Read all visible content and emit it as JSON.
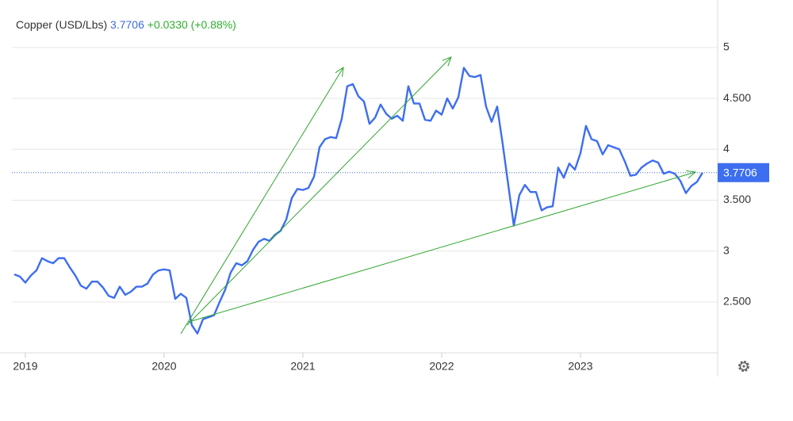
{
  "chart_data": {
    "type": "line",
    "title": "Copper (USD/Lbs)",
    "last": 3.7706,
    "change": "+0.0330 (+0.88%)",
    "x": [
      2018.92,
      2018.96,
      2019,
      2019.04,
      2019.08,
      2019.12,
      2019.16,
      2019.2,
      2019.24,
      2019.28,
      2019.32,
      2019.36,
      2019.4,
      2019.44,
      2019.48,
      2019.52,
      2019.56,
      2019.6,
      2019.64,
      2019.68,
      2019.72,
      2019.76,
      2019.8,
      2019.84,
      2019.88,
      2019.92,
      2019.96,
      2020,
      2020.04,
      2020.08,
      2020.12,
      2020.16,
      2020.2,
      2020.24,
      2020.28,
      2020.32,
      2020.36,
      2020.4,
      2020.44,
      2020.48,
      2020.52,
      2020.56,
      2020.6,
      2020.64,
      2020.68,
      2020.72,
      2020.76,
      2020.8,
      2020.84,
      2020.88,
      2020.92,
      2020.96,
      2021,
      2021.04,
      2021.08,
      2021.12,
      2021.16,
      2021.2,
      2021.24,
      2021.28,
      2021.32,
      2021.36,
      2021.4,
      2021.44,
      2021.48,
      2021.52,
      2021.56,
      2021.6,
      2021.64,
      2021.68,
      2021.72,
      2021.76,
      2021.8,
      2021.84,
      2021.88,
      2021.92,
      2021.96,
      2022,
      2022.04,
      2022.08,
      2022.12,
      2022.16,
      2022.2,
      2022.24,
      2022.28,
      2022.32,
      2022.36,
      2022.4,
      2022.44,
      2022.48,
      2022.52,
      2022.56,
      2022.6,
      2022.64,
      2022.68,
      2022.72,
      2022.76,
      2022.8,
      2022.84,
      2022.88,
      2022.92,
      2022.96,
      2023,
      2023.04,
      2023.08,
      2023.12,
      2023.16,
      2023.2,
      2023.24,
      2023.28,
      2023.32,
      2023.36,
      2023.4,
      2023.44,
      2023.48,
      2023.52,
      2023.56,
      2023.6,
      2023.64,
      2023.68,
      2023.72,
      2023.76,
      2023.8,
      2023.84,
      2023.88
    ],
    "series": [
      {
        "name": "Copper",
        "color": "#3d6ef0",
        "values": [
          2.77,
          2.75,
          2.69,
          2.76,
          2.81,
          2.93,
          2.9,
          2.88,
          2.93,
          2.93,
          2.84,
          2.76,
          2.66,
          2.63,
          2.7,
          2.7,
          2.64,
          2.56,
          2.54,
          2.65,
          2.57,
          2.6,
          2.65,
          2.65,
          2.68,
          2.77,
          2.81,
          2.82,
          2.81,
          2.53,
          2.58,
          2.54,
          2.27,
          2.19,
          2.33,
          2.35,
          2.37,
          2.5,
          2.62,
          2.79,
          2.88,
          2.86,
          2.9,
          3.01,
          3.09,
          3.12,
          3.1,
          3.16,
          3.2,
          3.31,
          3.52,
          3.61,
          3.6,
          3.62,
          3.73,
          4.02,
          4.1,
          4.12,
          4.11,
          4.3,
          4.62,
          4.64,
          4.52,
          4.47,
          4.25,
          4.31,
          4.44,
          4.35,
          4.3,
          4.33,
          4.28,
          4.62,
          4.45,
          4.45,
          4.29,
          4.28,
          4.38,
          4.34,
          4.5,
          4.4,
          4.51,
          4.8,
          4.72,
          4.71,
          4.73,
          4.42,
          4.27,
          4.42,
          4.05,
          3.65,
          3.25,
          3.55,
          3.65,
          3.58,
          3.58,
          3.4,
          3.43,
          3.44,
          3.82,
          3.72,
          3.86,
          3.8,
          3.96,
          4.23,
          4.1,
          4.08,
          3.95,
          4.04,
          4.02,
          4,
          3.88,
          3.74,
          3.75,
          3.82,
          3.86,
          3.89,
          3.87,
          3.76,
          3.78,
          3.76,
          3.69,
          3.57,
          3.64,
          3.68,
          3.7706
        ]
      }
    ],
    "xlim": [
      2018.903,
      2023.989
    ],
    "xticks": [
      2019,
      2020,
      2021,
      2022,
      2023
    ],
    "ylim": [
      2,
      5.35
    ],
    "yticks": [
      {
        "value": 2.5,
        "label": "2.500"
      },
      3,
      {
        "value": 3.5,
        "label": "3.500"
      },
      4,
      {
        "value": 4.5,
        "label": "4.500"
      },
      5
    ],
    "grid": true
  }
}
